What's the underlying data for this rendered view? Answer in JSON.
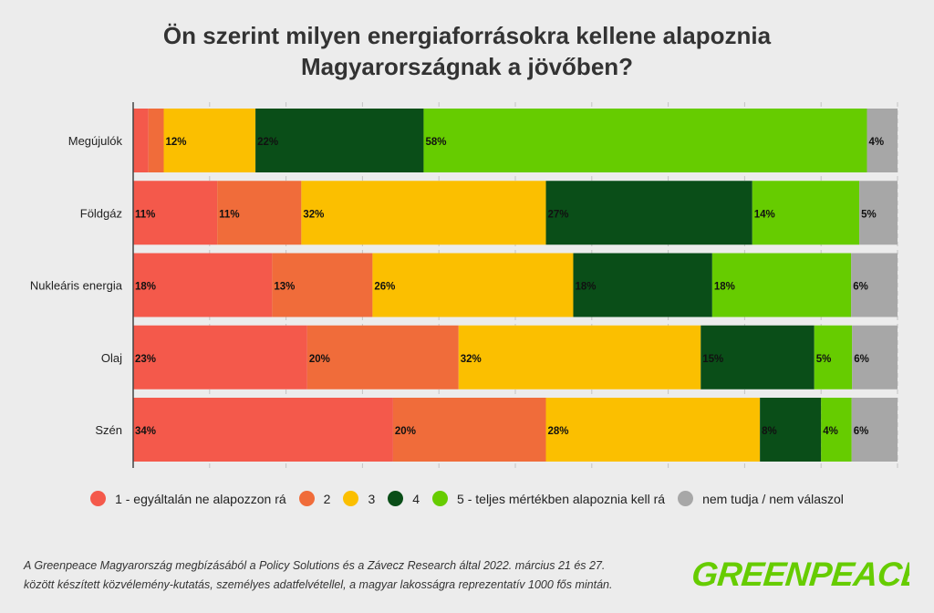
{
  "title": {
    "line1": "Ön szerint milyen energiaforrásokra kellene alapoznia",
    "line2": "Magyarországnak a jövőben?"
  },
  "chart_data": {
    "type": "bar",
    "orientation": "horizontal-stacked-100",
    "title": "Ön szerint milyen energiaforrásokra kellene alapoznia Magyarországnak a jövőben?",
    "categories": [
      "Megújulók",
      "Földgáz",
      "Nukleáris energia",
      "Olaj",
      "Szén"
    ],
    "series": [
      {
        "name": "1 - egyáltalán ne alapozzon rá",
        "color": "#f4594b",
        "values": [
          2,
          11,
          18,
          23,
          34
        ],
        "labels": [
          "",
          "11%",
          "18%",
          "23%",
          "34%"
        ]
      },
      {
        "name": "2",
        "color": "#f06c3a",
        "values": [
          2,
          11,
          13,
          20,
          20
        ],
        "labels": [
          "",
          "11%",
          "13%",
          "20%",
          "20%"
        ]
      },
      {
        "name": "3",
        "color": "#fbbf00",
        "values": [
          12,
          32,
          26,
          32,
          28
        ],
        "labels": [
          "12%",
          "32%",
          "26%",
          "32%",
          "28%"
        ]
      },
      {
        "name": "4",
        "color": "#0a4e18",
        "values": [
          22,
          27,
          18,
          15,
          8
        ],
        "labels": [
          "22%",
          "27%",
          "18%",
          "15%",
          "8%"
        ]
      },
      {
        "name": "5 - teljes mértékben alapoznia kell rá",
        "color": "#66cc00",
        "values": [
          58,
          14,
          18,
          5,
          4
        ],
        "labels": [
          "58%",
          "14%",
          "18%",
          "5%",
          "4%"
        ]
      },
      {
        "name": "nem tudja / nem válaszol",
        "color": "#a7a7a7",
        "values": [
          4,
          5,
          6,
          6,
          6
        ],
        "labels": [
          "4%",
          "5%",
          "6%",
          "6%",
          "6%"
        ]
      }
    ],
    "xlim": [
      0,
      100
    ],
    "grid": true,
    "legend": "bottom"
  },
  "footnote": {
    "line1": "A Greenpeace Magyarország megbízásából a Policy Solutions és a Závecz Research által 2022. március 21 és 27.",
    "line2": "között készített közvélemény-kutatás, személyes adatfelvétellel, a magyar lakosságra reprezentatív 1000 fős mintán."
  },
  "logo": {
    "text": "GREENPEACE",
    "color": "#66cc00"
  }
}
